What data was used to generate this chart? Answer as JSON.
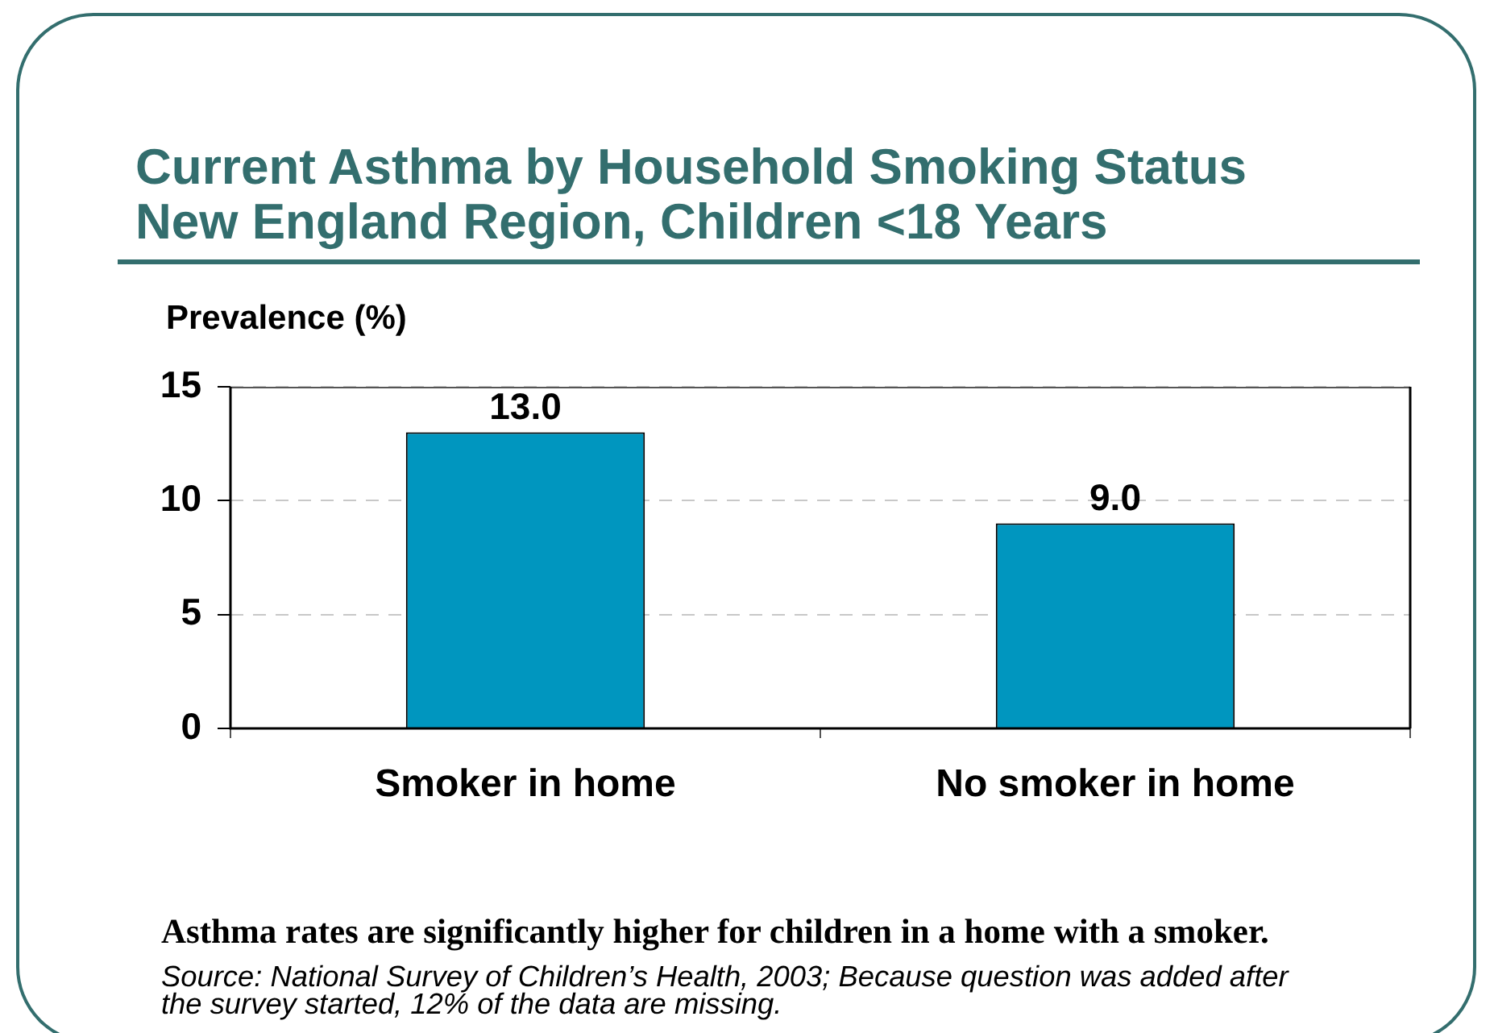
{
  "chart_data": {
    "type": "bar",
    "title": "Current Asthma by Household Smoking Status\nNew England Region, Children <18 Years",
    "ylabel": "Prevalence (%)",
    "categories": [
      "Smoker in home",
      "No smoker in home"
    ],
    "values": [
      13.0,
      9.0
    ],
    "color": "#0096bf",
    "value_labels": [
      "13.0",
      "9.0"
    ],
    "ylim": [
      0,
      15
    ],
    "yticks": [
      0,
      5,
      10,
      15
    ],
    "grid": "y",
    "annotations": [
      "Asthma rates are significantly higher for children in a home with a smoker.",
      "Source: National Survey of Children’s Health, 2003; Because question was added after the survey started, 12% of the data are missing."
    ]
  }
}
